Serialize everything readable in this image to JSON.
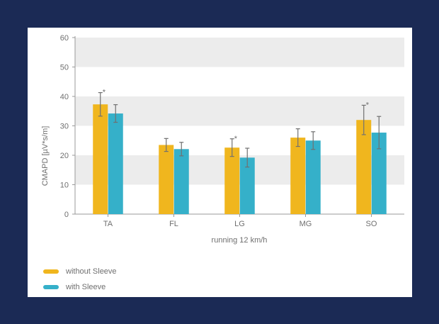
{
  "colors": {
    "background": "#1b2a55",
    "panel": "#ffffff",
    "band": "#ececec",
    "axis": "#9a9a9a",
    "error_bar": "#707070",
    "text": "#6f6f6f"
  },
  "legend": {
    "items": [
      {
        "label": "without Sleeve",
        "color": "#f0b61e"
      },
      {
        "label": "with Sleeve",
        "color": "#35b0c9"
      }
    ]
  },
  "chart_data": {
    "type": "bar",
    "title": "",
    "xlabel": "running 12 km/h",
    "ylabel": "CMAPD [µV*s/m]",
    "categories": [
      "TA",
      "FL",
      "LG",
      "MG",
      "SO"
    ],
    "yticks": [
      0,
      10,
      20,
      30,
      40,
      50,
      60
    ],
    "ylim": [
      0,
      60
    ],
    "grid": "alternating horizontal bands",
    "legend_position": "bottom-left",
    "series": [
      {
        "name": "without Sleeve",
        "color": "#f0b61e",
        "values": [
          37.3,
          23.5,
          22.6,
          26.0,
          32.0
        ],
        "error": [
          4.0,
          2.2,
          3.0,
          3.0,
          5.0
        ],
        "significance": [
          "*",
          "",
          "*",
          "",
          "*"
        ]
      },
      {
        "name": "with Sleeve",
        "color": "#35b0c9",
        "values": [
          34.2,
          22.1,
          19.2,
          25.0,
          27.7
        ],
        "error": [
          3.0,
          2.3,
          3.2,
          3.0,
          5.5
        ],
        "significance": [
          "",
          "",
          "",
          "",
          ""
        ]
      }
    ]
  }
}
